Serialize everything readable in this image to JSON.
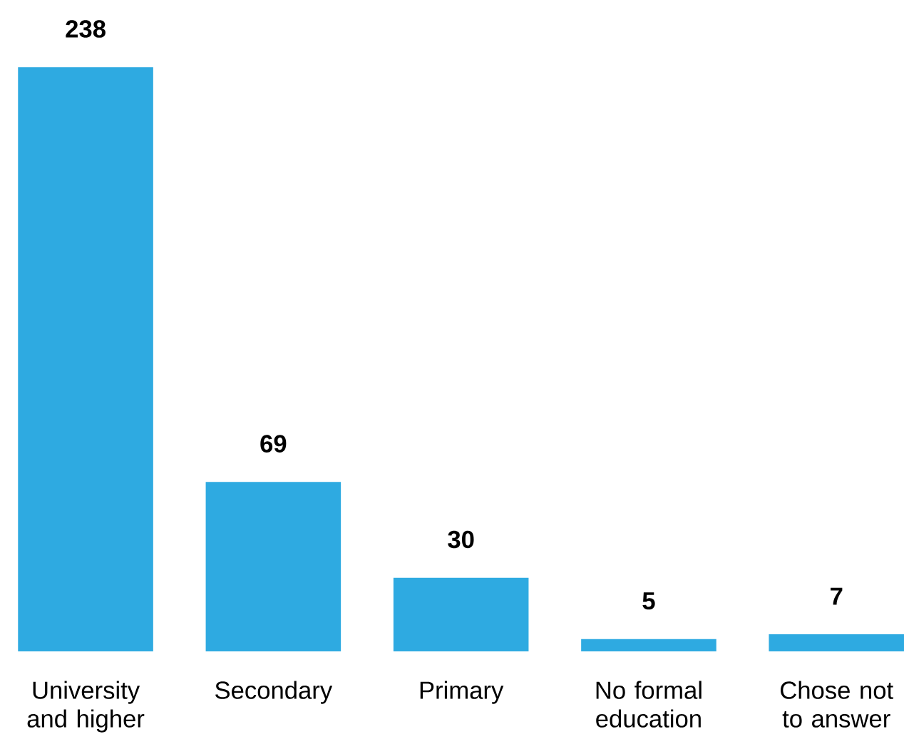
{
  "chart_data": {
    "type": "bar",
    "categories": [
      "University and higher",
      "Secondary",
      "Primary",
      "No formal education",
      "Chose not to answer"
    ],
    "values": [
      238,
      69,
      30,
      5,
      7
    ],
    "color": "#2eaae1",
    "data_labels": true
  }
}
